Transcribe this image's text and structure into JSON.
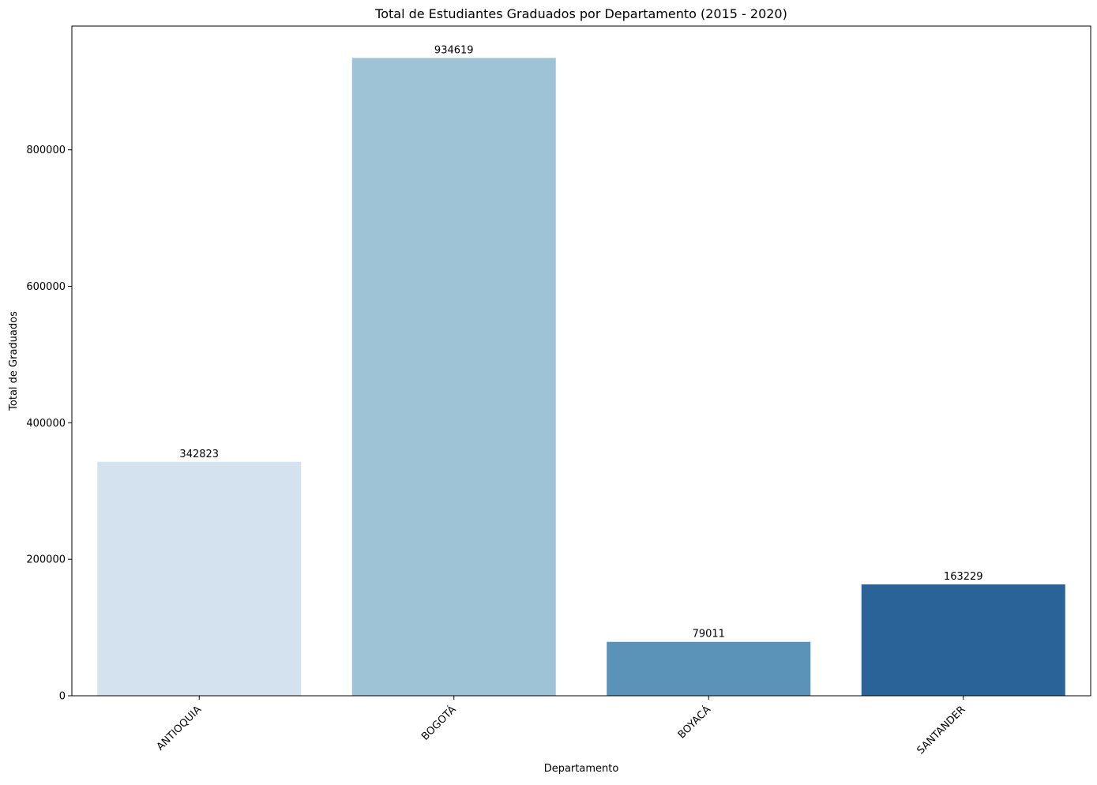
{
  "chart_data": {
    "type": "bar",
    "title": "Total de Estudiantes Graduados por Departamento (2015 - 2020)",
    "xlabel": "Departamento",
    "ylabel": "Total de Graduados",
    "categories": [
      "ANTIOQUIA",
      "BOGOTÁ",
      "BOYACÁ",
      "SANTANDER"
    ],
    "values": [
      342823,
      934619,
      79011,
      163229
    ],
    "data_labels": [
      "342823",
      "934619",
      "79011",
      "163229"
    ],
    "colors": [
      "#d4e2f0",
      "#9ec2d6",
      "#5b93b8",
      "#2a6398"
    ],
    "yticks": [
      0,
      200000,
      400000,
      600000,
      800000
    ],
    "ytick_labels": [
      "0",
      "200000",
      "400000",
      "600000",
      "800000"
    ],
    "ylim": [
      0,
      981350
    ],
    "grid": false,
    "legend": "none",
    "xtick_rotation": 45
  }
}
